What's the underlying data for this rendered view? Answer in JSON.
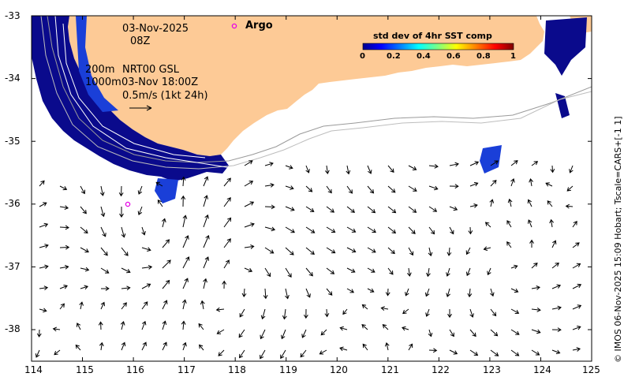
{
  "map": {
    "date": "03-Nov-2025",
    "time": "08Z",
    "depth_line1": "200m",
    "depth_line2": "1000m",
    "product": "NRT00 GSL",
    "product_time": "03-Nov 18:00Z",
    "scale_label": "0.5m/s (1kt 24h)",
    "argo_label": "Argo",
    "credit": "© IMOS 06-Nov-2025 15:09 Hobart; Tscale=CARS+[-1 1]"
  },
  "colorbar": {
    "title": "std dev of 4hr SST comp",
    "ticks": [
      "0",
      "0.2",
      "0.4",
      "0.6",
      "0.8",
      "1"
    ],
    "colors": [
      "#00008f",
      "#0000ff",
      "#0080ff",
      "#00ffff",
      "#80ff80",
      "#ffff00",
      "#ff8000",
      "#ff0000",
      "#800000"
    ]
  },
  "axes": {
    "lon_range": [
      114,
      125
    ],
    "lat_range": [
      -38.5,
      -33
    ],
    "x_ticks": [
      "114",
      "115",
      "116",
      "117",
      "118",
      "119",
      "120",
      "121",
      "122",
      "123",
      "124",
      "125"
    ],
    "y_ticks": [
      "-33",
      "-34",
      "-35",
      "-36",
      "-37",
      "-38"
    ]
  },
  "colors": {
    "land": "#fdca96",
    "sst_dark": "#0a0a8c",
    "sst_mid": "#1a3fd8",
    "argo": "#e600e6"
  },
  "argo_floats": [
    {
      "name": "Argo",
      "lon": 118.0,
      "lat": -33.17
    },
    {
      "name": "Argo",
      "lon": 115.9,
      "lat": -36.0
    }
  ]
}
